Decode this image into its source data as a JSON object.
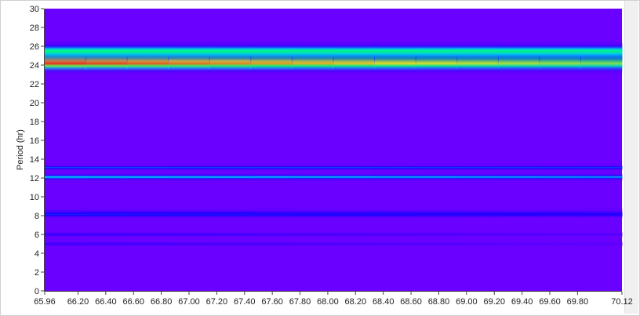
{
  "chart_data": {
    "type": "heatmap",
    "ylabel": "Period (hr)",
    "xlabel": "",
    "title": "",
    "xlim": [
      65.96,
      70.12
    ],
    "ylim": [
      0,
      30
    ],
    "x_tick_labels": [
      "65.96",
      "66.20",
      "66.40",
      "66.60",
      "66.80",
      "67.00",
      "67.20",
      "67.40",
      "67.60",
      "67.80",
      "68.00",
      "68.20",
      "68.40",
      "68.60",
      "68.80",
      "69.00",
      "69.20",
      "69.40",
      "69.60",
      "69.80",
      "70.12"
    ],
    "y_tick_labels": [
      "0",
      "2",
      "4",
      "6",
      "8",
      "10",
      "12",
      "14",
      "16",
      "18",
      "20",
      "22",
      "24",
      "26",
      "28",
      "30"
    ],
    "colorscale": [
      "#6a00ff",
      "#1800ff",
      "#00c0ff",
      "#00ff70",
      "#ffff00",
      "#ff0000"
    ],
    "background_color": "#6a00ff",
    "bands": [
      {
        "period_low": 22.8,
        "period_high": 27.2,
        "peak_period": 24.2,
        "intensity_start": 1.0,
        "intensity_end": 0.72
      },
      {
        "period_low": 23.8,
        "period_high": 26.6,
        "peak_period": 25.5,
        "intensity_start": 0.62,
        "intensity_end": 0.6
      },
      {
        "period_low": 11.6,
        "period_high": 12.6,
        "peak_period": 12.1,
        "intensity_start": 0.45,
        "intensity_end": 0.38
      },
      {
        "period_low": 12.7,
        "period_high": 13.5,
        "peak_period": 13.1,
        "intensity_start": 0.3,
        "intensity_end": 0.28
      },
      {
        "period_low": 7.6,
        "period_high": 9.0,
        "peak_period": 8.1,
        "intensity_start": 0.25,
        "intensity_end": 0.2
      },
      {
        "period_low": 5.6,
        "period_high": 6.4,
        "peak_period": 6.0,
        "intensity_start": 0.16,
        "intensity_end": 0.06
      },
      {
        "period_low": 4.6,
        "period_high": 5.4,
        "peak_period": 5.0,
        "intensity_start": 0.14,
        "intensity_end": 0.04
      }
    ]
  }
}
